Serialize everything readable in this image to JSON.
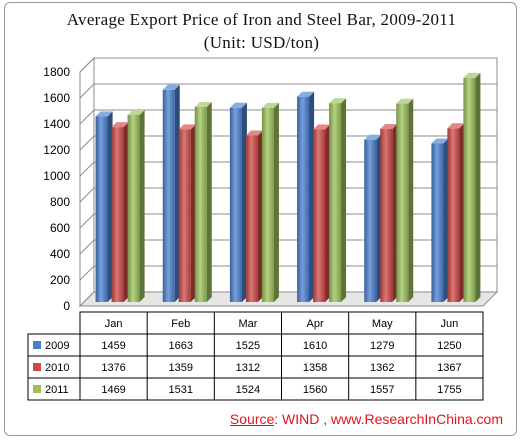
{
  "chart_data": {
    "type": "bar",
    "title": "Average Export Price of Iron and Steel Bar, 2009-2011",
    "subtitle": "(Unit: USD/ton)",
    "categories": [
      "Jan",
      "Feb",
      "Mar",
      "Apr",
      "May",
      "Jun"
    ],
    "series": [
      {
        "name": "2009",
        "values": [
          1459,
          1663,
          1525,
          1610,
          1279,
          1250
        ],
        "color": "#4a7fd0"
      },
      {
        "name": "2010",
        "values": [
          1376,
          1359,
          1312,
          1358,
          1362,
          1367
        ],
        "color": "#cf4a46"
      },
      {
        "name": "2011",
        "values": [
          1469,
          1531,
          1524,
          1560,
          1557,
          1755
        ],
        "color": "#9cc15a"
      }
    ],
    "ylim": [
      0,
      1800
    ],
    "yticks": [
      0,
      200,
      400,
      600,
      800,
      1000,
      1200,
      1400,
      1600,
      1800
    ],
    "grid": true,
    "legend": "data-table"
  },
  "source": {
    "label": "Source",
    "text": ": WIND , www.ResearchInChina.com"
  }
}
